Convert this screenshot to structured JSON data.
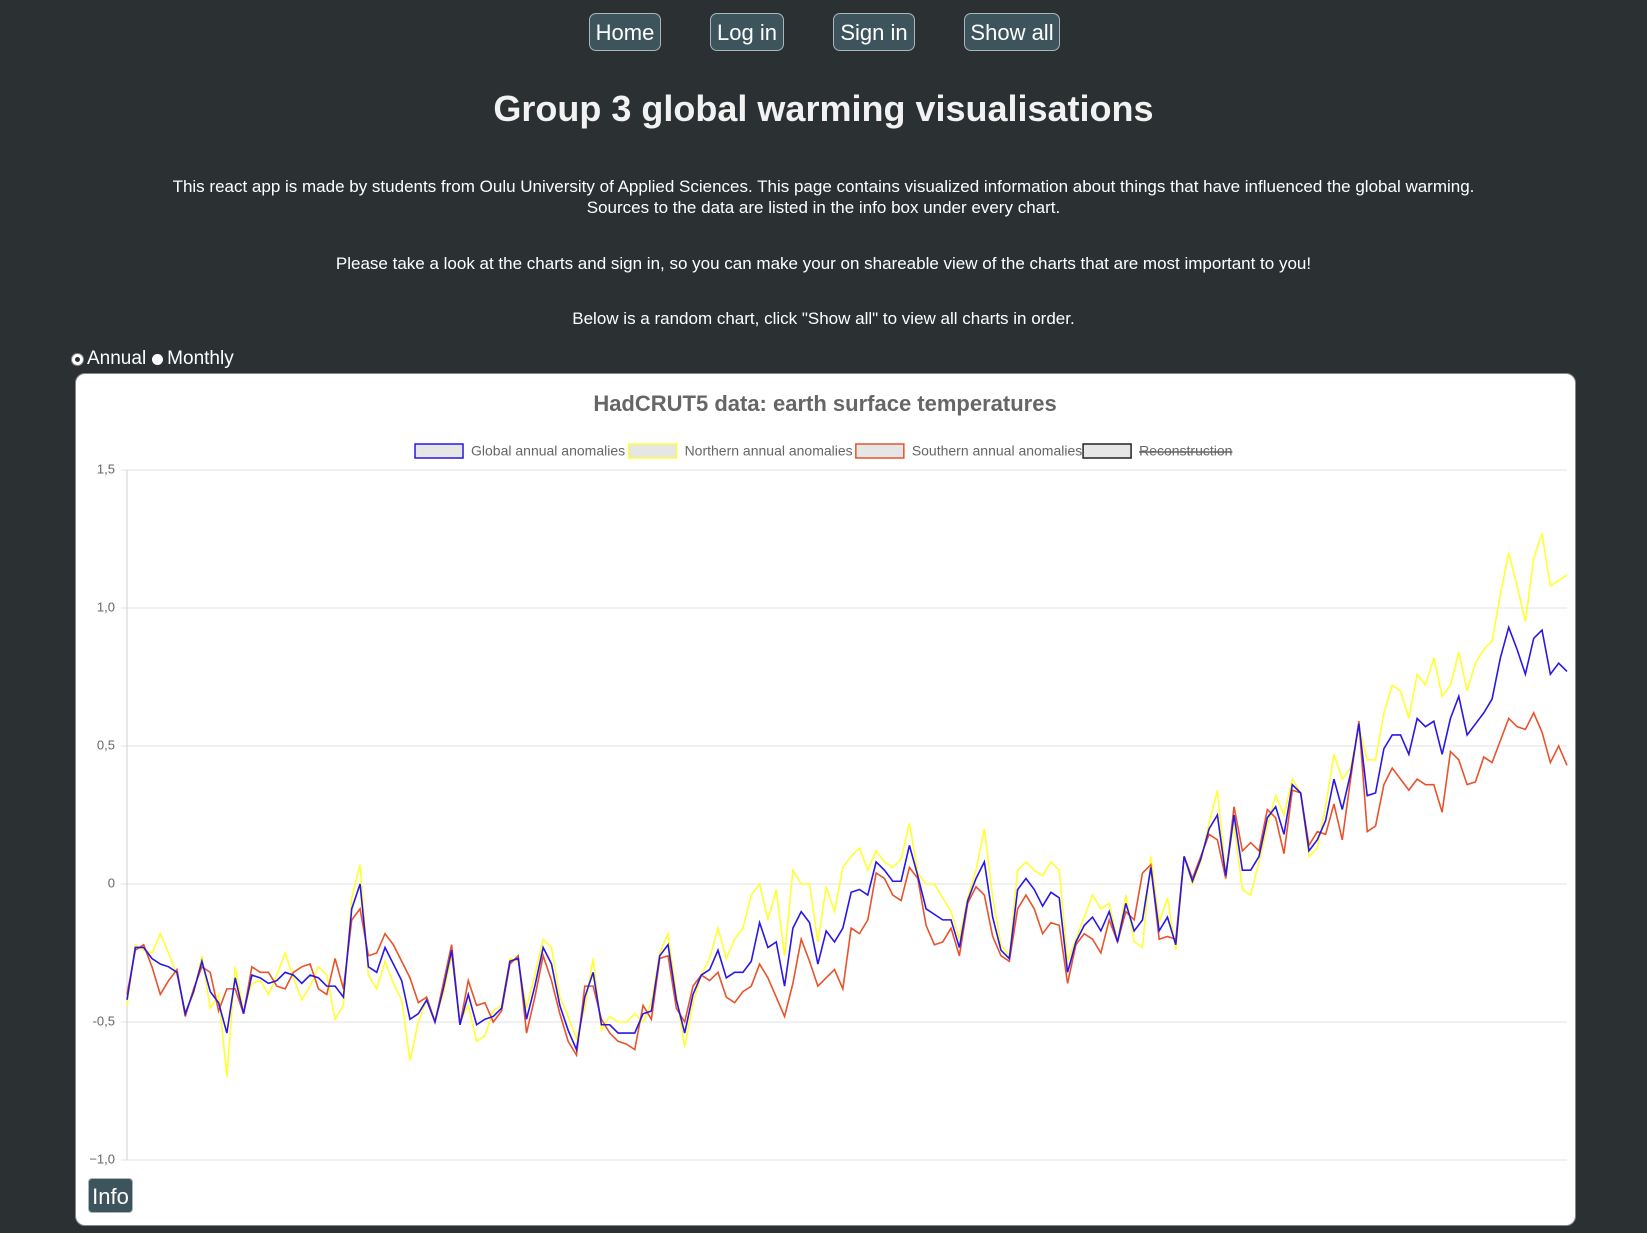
{
  "nav": [
    "Home",
    "Log in",
    "Sign in",
    "Show all"
  ],
  "header": {
    "title": "Group 3 global warming visualisations",
    "intro": [
      "This react app is made by students from Oulu University of Applied Sciences. This page contains visualized information about things that have influenced the global warming.",
      "Sources to the data are listed in the info box under every chart."
    ],
    "note": "Please take a look at the charts and sign in, so you can make your on shareable view of the charts that are most important to you!",
    "hint": "Below is a random chart, click \"Show all\" to view all charts in order."
  },
  "radio": {
    "options": [
      "Annual",
      "Monthly"
    ],
    "selected": 0
  },
  "info_button": "Info",
  "chart_data": {
    "type": "line",
    "title": "HadCRUT5 data: earth surface temperatures",
    "ylim": [
      -1,
      1.5
    ],
    "yticks": [
      {
        "value": -1,
        "label": "−1,0"
      },
      {
        "value": -0.5,
        "label": "-0,5"
      },
      0,
      {
        "value": 0.5,
        "label": "0,5"
      },
      {
        "value": 1,
        "label": "1,0"
      },
      {
        "value": 1.5,
        "label": "1,5"
      }
    ],
    "grid": true,
    "legend": "top",
    "series": [
      {
        "name": "Global annual anomalies",
        "color": "#2a17e6",
        "values": [
          -0.42,
          -0.23,
          -0.23,
          -0.27,
          -0.29,
          -0.3,
          -0.32,
          -0.47,
          -0.39,
          -0.28,
          -0.39,
          -0.43,
          -0.54,
          -0.34,
          -0.47,
          -0.33,
          -0.34,
          -0.36,
          -0.35,
          -0.32,
          -0.33,
          -0.36,
          -0.33,
          -0.34,
          -0.37,
          -0.37,
          -0.41,
          -0.09,
          0.0,
          -0.3,
          -0.32,
          -0.23,
          -0.29,
          -0.35,
          -0.49,
          -0.47,
          -0.42,
          -0.5,
          -0.38,
          -0.24,
          -0.51,
          -0.4,
          -0.51,
          -0.49,
          -0.48,
          -0.45,
          -0.28,
          -0.27,
          -0.49,
          -0.37,
          -0.23,
          -0.29,
          -0.44,
          -0.53,
          -0.6,
          -0.41,
          -0.32,
          -0.51,
          -0.51,
          -0.54,
          -0.54,
          -0.54,
          -0.47,
          -0.46,
          -0.26,
          -0.22,
          -0.42,
          -0.54,
          -0.4,
          -0.33,
          -0.31,
          -0.24,
          -0.34,
          -0.32,
          -0.32,
          -0.28,
          -0.14,
          -0.23,
          -0.21,
          -0.37,
          -0.16,
          -0.1,
          -0.14,
          -0.29,
          -0.17,
          -0.21,
          -0.16,
          -0.03,
          -0.02,
          -0.04,
          0.08,
          0.05,
          0.01,
          0.01,
          0.14,
          0.03,
          -0.09,
          -0.11,
          -0.13,
          -0.13,
          -0.23,
          -0.06,
          0.02,
          0.08,
          -0.12,
          -0.24,
          -0.27,
          -0.02,
          0.02,
          -0.02,
          -0.08,
          -0.03,
          -0.05,
          -0.32,
          -0.21,
          -0.15,
          -0.12,
          -0.17,
          -0.1,
          -0.21,
          -0.07,
          -0.17,
          -0.13,
          0.06,
          -0.17,
          -0.12,
          -0.22,
          0.1,
          0.01,
          0.09,
          0.2,
          0.25,
          0.03,
          0.25,
          0.05,
          0.05,
          0.1,
          0.24,
          0.28,
          0.18,
          0.36,
          0.33,
          0.12,
          0.16,
          0.23,
          0.38,
          0.27,
          0.4,
          0.58,
          0.32,
          0.33,
          0.49,
          0.54,
          0.54,
          0.47,
          0.6,
          0.57,
          0.59,
          0.47,
          0.6,
          0.68,
          0.54,
          0.58,
          0.62,
          0.67,
          0.82,
          0.93,
          0.85,
          0.76,
          0.89,
          0.92,
          0.76,
          0.8,
          0.77
        ]
      },
      {
        "name": "Northern annual anomalies",
        "color": "#ffff33",
        "values": [
          -0.44,
          -0.22,
          -0.24,
          -0.25,
          -0.18,
          -0.25,
          -0.33,
          -0.46,
          -0.4,
          -0.26,
          -0.45,
          -0.4,
          -0.7,
          -0.3,
          -0.46,
          -0.36,
          -0.35,
          -0.4,
          -0.33,
          -0.25,
          -0.34,
          -0.42,
          -0.37,
          -0.3,
          -0.33,
          -0.49,
          -0.44,
          -0.05,
          0.07,
          -0.33,
          -0.38,
          -0.28,
          -0.36,
          -0.42,
          -0.64,
          -0.5,
          -0.42,
          -0.49,
          -0.4,
          -0.26,
          -0.5,
          -0.44,
          -0.57,
          -0.55,
          -0.46,
          -0.44,
          -0.27,
          -0.28,
          -0.45,
          -0.33,
          -0.2,
          -0.23,
          -0.41,
          -0.48,
          -0.56,
          -0.45,
          -0.27,
          -0.53,
          -0.48,
          -0.5,
          -0.5,
          -0.47,
          -0.5,
          -0.43,
          -0.25,
          -0.18,
          -0.4,
          -0.59,
          -0.43,
          -0.33,
          -0.27,
          -0.16,
          -0.27,
          -0.2,
          -0.16,
          -0.04,
          0.0,
          -0.13,
          -0.02,
          -0.26,
          0.05,
          0.0,
          0.0,
          -0.21,
          -0.01,
          -0.1,
          0.06,
          0.1,
          0.13,
          0.05,
          0.12,
          0.08,
          0.06,
          0.09,
          0.22,
          0.04,
          0.0,
          0.0,
          -0.05,
          -0.1,
          -0.2,
          -0.05,
          0.05,
          0.2,
          -0.05,
          -0.22,
          -0.26,
          0.05,
          0.08,
          0.05,
          0.03,
          0.08,
          0.05,
          -0.28,
          -0.2,
          -0.12,
          -0.04,
          -0.09,
          -0.07,
          -0.21,
          -0.04,
          -0.21,
          -0.23,
          0.1,
          -0.14,
          -0.05,
          -0.24,
          0.1,
          0.0,
          0.08,
          0.22,
          0.34,
          0.04,
          0.22,
          -0.02,
          -0.04,
          0.08,
          0.21,
          0.32,
          0.25,
          0.38,
          0.33,
          0.1,
          0.13,
          0.28,
          0.47,
          0.38,
          0.42,
          0.57,
          0.45,
          0.45,
          0.62,
          0.72,
          0.7,
          0.6,
          0.76,
          0.72,
          0.82,
          0.68,
          0.72,
          0.84,
          0.7,
          0.8,
          0.85,
          0.88,
          1.05,
          1.2,
          1.08,
          0.95,
          1.18,
          1.27,
          1.08,
          1.1,
          1.12
        ]
      },
      {
        "name": "Southern annual anomalies",
        "color": "#e8532b",
        "values": [
          -0.4,
          -0.24,
          -0.22,
          -0.3,
          -0.4,
          -0.35,
          -0.31,
          -0.48,
          -0.38,
          -0.3,
          -0.32,
          -0.46,
          -0.38,
          -0.38,
          -0.47,
          -0.3,
          -0.32,
          -0.32,
          -0.37,
          -0.38,
          -0.32,
          -0.3,
          -0.29,
          -0.38,
          -0.4,
          -0.27,
          -0.38,
          -0.13,
          -0.09,
          -0.26,
          -0.25,
          -0.18,
          -0.22,
          -0.28,
          -0.34,
          -0.43,
          -0.41,
          -0.5,
          -0.36,
          -0.22,
          -0.51,
          -0.35,
          -0.44,
          -0.43,
          -0.5,
          -0.46,
          -0.29,
          -0.26,
          -0.54,
          -0.41,
          -0.26,
          -0.35,
          -0.47,
          -0.57,
          -0.62,
          -0.37,
          -0.37,
          -0.49,
          -0.54,
          -0.57,
          -0.58,
          -0.6,
          -0.44,
          -0.49,
          -0.27,
          -0.26,
          -0.45,
          -0.5,
          -0.37,
          -0.33,
          -0.35,
          -0.32,
          -0.41,
          -0.43,
          -0.39,
          -0.37,
          -0.29,
          -0.34,
          -0.41,
          -0.48,
          -0.36,
          -0.2,
          -0.28,
          -0.37,
          -0.34,
          -0.31,
          -0.38,
          -0.16,
          -0.18,
          -0.13,
          0.04,
          0.02,
          -0.04,
          -0.06,
          0.06,
          0.02,
          -0.15,
          -0.22,
          -0.21,
          -0.16,
          -0.26,
          -0.07,
          -0.01,
          -0.04,
          -0.19,
          -0.26,
          -0.28,
          -0.09,
          -0.04,
          -0.09,
          -0.18,
          -0.14,
          -0.15,
          -0.36,
          -0.22,
          -0.18,
          -0.2,
          -0.25,
          -0.13,
          -0.21,
          -0.1,
          -0.13,
          0.04,
          0.07,
          -0.2,
          -0.19,
          -0.2,
          0.1,
          0.02,
          0.1,
          0.18,
          0.16,
          0.02,
          0.28,
          0.12,
          0.15,
          0.12,
          0.27,
          0.24,
          0.11,
          0.34,
          0.33,
          0.14,
          0.19,
          0.18,
          0.29,
          0.16,
          0.38,
          0.59,
          0.19,
          0.21,
          0.36,
          0.42,
          0.38,
          0.34,
          0.38,
          0.36,
          0.36,
          0.26,
          0.48,
          0.45,
          0.36,
          0.37,
          0.46,
          0.44,
          0.52,
          0.6,
          0.57,
          0.56,
          0.62,
          0.55,
          0.44,
          0.5,
          0.43
        ]
      },
      {
        "name": "Reconstruction",
        "color": "#222222",
        "hidden": true
      }
    ]
  }
}
